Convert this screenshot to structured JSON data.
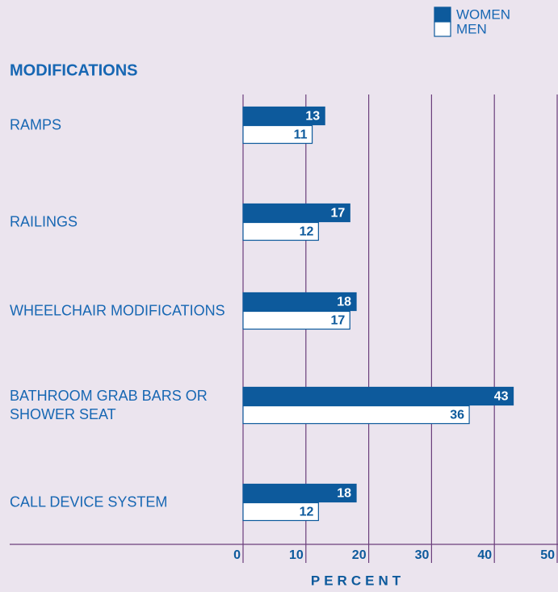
{
  "chart_data": {
    "type": "hbar",
    "ylabel": "MODIFICATIONS",
    "xlabel": "PERCENT",
    "categories": [
      "RAMPS",
      "RAILINGS",
      "WHEELCHAIR MODIFICATIONS",
      "BATHROOM GRAB BARS OR SHOWER SEAT",
      "CALL DEVICE SYSTEM"
    ],
    "series": [
      {
        "name": "WOMEN",
        "color": "#0d5a9c",
        "values": [
          13,
          17,
          18,
          43,
          18
        ]
      },
      {
        "name": "MEN",
        "color": "#ffffff",
        "values": [
          11,
          12,
          17,
          36,
          12
        ]
      }
    ],
    "xlim": [
      0,
      50
    ],
    "xticks": [
      0,
      10,
      20,
      30,
      40,
      50
    ],
    "grid": true,
    "legend": "top-right"
  }
}
